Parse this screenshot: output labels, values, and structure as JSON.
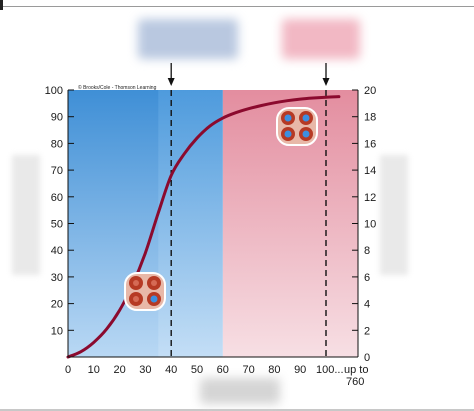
{
  "chart_data": {
    "type": "line",
    "copyright": "© Brooks/Cole - Thomson Learning",
    "x_ticks": [
      "0",
      "10",
      "20",
      "30",
      "40",
      "50",
      "60",
      "70",
      "80",
      "90",
      "100..."
    ],
    "x_extra_label": "up to",
    "x_extra_value": "760",
    "y_left_ticks": [
      "10",
      "20",
      "30",
      "40",
      "50",
      "60",
      "70",
      "80",
      "90",
      "100"
    ],
    "y_right_ticks": [
      "0",
      "2",
      "4",
      "6",
      "8",
      "10",
      "12",
      "14",
      "16",
      "18",
      "20"
    ],
    "xlim": [
      0,
      100
    ],
    "ylim_left": [
      0,
      100
    ],
    "ylim_right": [
      0,
      20
    ],
    "regions": [
      {
        "x_start": 0,
        "x_end": 60,
        "color": "#4f9bdc"
      },
      {
        "x_start": 60,
        "x_end": 100,
        "color": "#e7a3b1"
      }
    ],
    "markers": [
      40,
      100
    ],
    "series": [
      {
        "color": "#8b0a2e",
        "x": [
          0,
          5,
          10,
          15,
          20,
          25,
          30,
          35,
          40,
          45,
          50,
          55,
          60,
          65,
          70,
          75,
          80,
          85,
          90,
          95,
          100,
          105
        ],
        "y": [
          0,
          2,
          5.5,
          10.5,
          17.5,
          27,
          39,
          54,
          68,
          76,
          82,
          86.5,
          89.5,
          91.5,
          93,
          94.2,
          95.2,
          96,
          96.6,
          97,
          97.3,
          97.5
        ]
      }
    ],
    "colors": {
      "curve": "#8b0a2e",
      "cell_body": "#c54a33",
      "cell_blue": "#3c8fe0"
    }
  }
}
